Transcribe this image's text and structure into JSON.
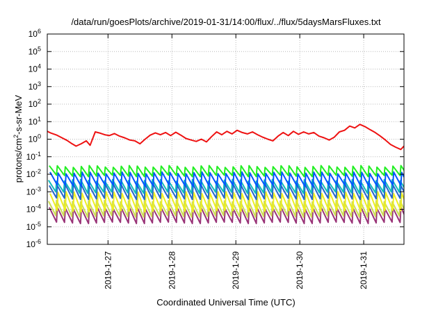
{
  "chart_data": {
    "type": "line",
    "title": "/data/run/goesPlots/archive/2019-01-31/14:00/flux/../flux/5daysMarsFluxes.txt",
    "xlabel": "Coordinated Universal Time (UTC)",
    "ylabel_parts": [
      "protons/cm",
      "2",
      "-s-sr-MeV"
    ],
    "y_scale": "log",
    "ylim": [
      1e-06,
      1000000.0
    ],
    "y_ticks": [
      {
        "exp": "-6",
        "value": 1e-06
      },
      {
        "exp": "-5",
        "value": 1e-05
      },
      {
        "exp": "-4",
        "value": 0.0001
      },
      {
        "exp": "-3",
        "value": 0.001
      },
      {
        "exp": "-2",
        "value": 0.01
      },
      {
        "exp": "-1",
        "value": 0.1
      },
      {
        "exp": "0",
        "value": 1
      },
      {
        "exp": "1",
        "value": 10
      },
      {
        "exp": "2",
        "value": 100
      },
      {
        "exp": "3",
        "value": 1000
      },
      {
        "exp": "4",
        "value": 10000
      },
      {
        "exp": "5",
        "value": 100000
      },
      {
        "exp": "6",
        "value": 1000000
      }
    ],
    "y_tick_base": "10",
    "xlim": [
      26.05,
      31.63
    ],
    "x_ticks": [
      {
        "label": "2019-1-27",
        "value": 27
      },
      {
        "label": "2019-1-28",
        "value": 28
      },
      {
        "label": "2019-1-29",
        "value": 29
      },
      {
        "label": "2019-1-30",
        "value": 30
      },
      {
        "label": "2019-1-31",
        "value": 31
      }
    ],
    "x_unit": "day of January 2019 (UTC)",
    "grid": true,
    "series": [
      {
        "color": "#ee1111",
        "style": "sawtooth",
        "x": [
          26.05,
          26.1,
          26.2,
          26.28,
          26.36,
          26.42,
          26.5,
          26.58,
          26.66,
          26.72,
          26.8,
          26.88,
          26.95,
          27.02,
          27.1,
          27.18,
          27.26,
          27.34,
          27.42,
          27.5,
          27.58,
          27.66,
          27.74,
          27.82,
          27.9,
          27.98,
          28.06,
          28.14,
          28.22,
          28.3,
          28.38,
          28.46,
          28.54,
          28.62,
          28.7,
          28.78,
          28.86,
          28.94,
          29.02,
          29.1,
          29.18,
          29.26,
          29.34,
          29.42,
          29.5,
          29.58,
          29.66,
          29.74,
          29.82,
          29.9,
          29.98,
          30.06,
          30.14,
          30.22,
          30.3,
          30.38,
          30.46,
          30.54,
          30.62,
          30.7,
          30.78,
          30.86,
          30.94,
          31.02,
          31.1,
          31.18,
          31.26,
          31.34,
          31.42,
          31.5,
          31.58,
          31.63
        ],
        "y": [
          2.8,
          2.3,
          1.7,
          1.2,
          0.85,
          0.6,
          0.4,
          0.55,
          0.8,
          0.45,
          2.6,
          2.2,
          1.8,
          1.6,
          2.1,
          1.5,
          1.2,
          0.9,
          0.8,
          0.55,
          1.0,
          1.7,
          2.3,
          1.8,
          2.4,
          1.6,
          2.5,
          1.7,
          1.1,
          0.9,
          0.75,
          1.0,
          0.7,
          1.4,
          2.6,
          1.8,
          2.8,
          2.0,
          3.2,
          2.4,
          2.0,
          2.6,
          1.8,
          1.3,
          1.0,
          0.8,
          1.5,
          2.4,
          1.6,
          2.8,
          1.9,
          2.6,
          2.0,
          2.4,
          1.5,
          1.2,
          0.9,
          1.3,
          2.6,
          3.2,
          5.6,
          4.4,
          7.0,
          5.2,
          3.5,
          2.4,
          1.5,
          0.9,
          0.5,
          0.35,
          0.26,
          0.4
        ]
      },
      {
        "color": "#22ee22",
        "style": "sawtooth",
        "period": 0.125,
        "peak": 0.028,
        "trough": 0.008
      },
      {
        "color": "#0055ff",
        "style": "sawtooth",
        "period": 0.125,
        "peak": 0.012,
        "trough": 0.0022
      },
      {
        "color": "#11bbbb",
        "style": "sawtooth",
        "period": 0.125,
        "peak": 0.0045,
        "trough": 0.0009
      },
      {
        "color": "#2266cc",
        "style": "sawtooth",
        "period": 0.125,
        "peak": 0.0025,
        "trough": 0.0004
      },
      {
        "color": "#eeee22",
        "style": "sawtooth",
        "period": 0.125,
        "peak": 0.0009,
        "trough": 8e-05
      },
      {
        "color": "#ccdd55",
        "style": "sawtooth",
        "period": 0.125,
        "peak": 0.0003,
        "trough": 4e-05
      },
      {
        "color": "#993377",
        "style": "sawtooth",
        "period": 0.125,
        "peak": 0.00012,
        "trough": 1.7e-05
      }
    ]
  }
}
